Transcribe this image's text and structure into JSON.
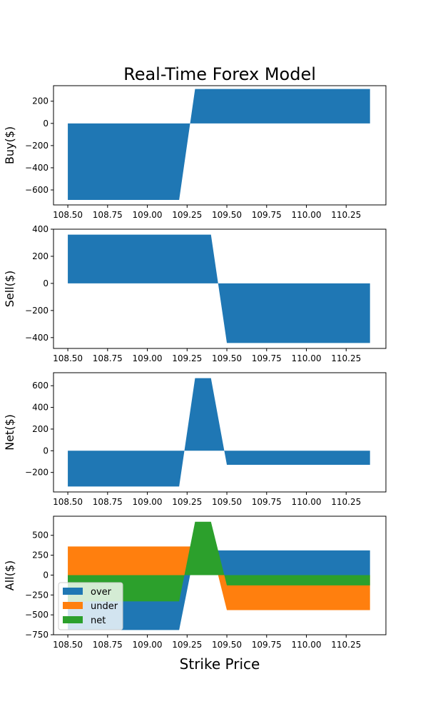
{
  "title": "Real-Time Forex Model",
  "xlabel": "Strike Price",
  "colors": {
    "over": "#1f77b4",
    "under": "#ff7f0e",
    "net": "#2ca02c"
  },
  "chart_data": [
    {
      "type": "area",
      "ylabel": "Buy($)",
      "xlim": [
        108.41,
        110.5
      ],
      "ylim": [
        -735,
        340
      ],
      "xticks": [
        "108.50",
        "108.75",
        "109.00",
        "109.25",
        "109.50",
        "109.75",
        "110.00",
        "110.25"
      ],
      "yticks": [
        "200",
        "0",
        "−200",
        "−400",
        "−600"
      ],
      "series": [
        {
          "color": "#1f77b4",
          "x": [
            108.5,
            109.2,
            109.3,
            110.4
          ],
          "y": [
            -690,
            -690,
            310,
            310
          ]
        }
      ]
    },
    {
      "type": "area",
      "ylabel": "Sell($)",
      "xlim": [
        108.41,
        110.5
      ],
      "ylim": [
        -480,
        400
      ],
      "xticks": [
        "108.50",
        "108.75",
        "109.00",
        "109.25",
        "109.50",
        "109.75",
        "110.00",
        "110.25"
      ],
      "yticks": [
        "400",
        "200",
        "0",
        "−200",
        "−400"
      ],
      "series": [
        {
          "color": "#1f77b4",
          "x": [
            108.5,
            109.4,
            109.5,
            110.4
          ],
          "y": [
            360,
            360,
            -440,
            -440
          ]
        }
      ]
    },
    {
      "type": "area",
      "ylabel": "Net($)",
      "xlim": [
        108.41,
        110.5
      ],
      "ylim": [
        -380,
        720
      ],
      "xticks": [
        "108.50",
        "108.75",
        "109.00",
        "109.25",
        "109.50",
        "109.75",
        "110.00",
        "110.25"
      ],
      "yticks": [
        "600",
        "400",
        "200",
        "0",
        "−200"
      ],
      "series": [
        {
          "color": "#1f77b4",
          "x": [
            108.5,
            109.2,
            109.3,
            109.4,
            109.5,
            110.4
          ],
          "y": [
            -330,
            -330,
            670,
            670,
            -130,
            -130
          ]
        }
      ]
    },
    {
      "type": "area",
      "ylabel": "All($)",
      "xlim": [
        108.41,
        110.5
      ],
      "ylim": [
        -750,
        740
      ],
      "xticks": [
        "108.50",
        "108.75",
        "109.00",
        "109.25",
        "109.50",
        "109.75",
        "110.00",
        "110.25"
      ],
      "yticks": [
        "500",
        "250",
        "0",
        "−250",
        "−500",
        "−750"
      ],
      "legend": {
        "position": "lower-left",
        "entries": [
          "over",
          "under",
          "net"
        ]
      },
      "series": [
        {
          "name": "over",
          "color": "#1f77b4",
          "x": [
            108.5,
            109.2,
            109.3,
            110.4
          ],
          "y": [
            -690,
            -690,
            310,
            310
          ]
        },
        {
          "name": "under",
          "color": "#ff7f0e",
          "x": [
            108.5,
            109.4,
            109.5,
            110.4
          ],
          "y": [
            360,
            360,
            -440,
            -440
          ]
        },
        {
          "name": "net",
          "color": "#2ca02c",
          "x": [
            108.5,
            109.2,
            109.3,
            109.4,
            109.5,
            110.4
          ],
          "y": [
            -330,
            -330,
            670,
            670,
            -130,
            -130
          ]
        }
      ]
    }
  ]
}
